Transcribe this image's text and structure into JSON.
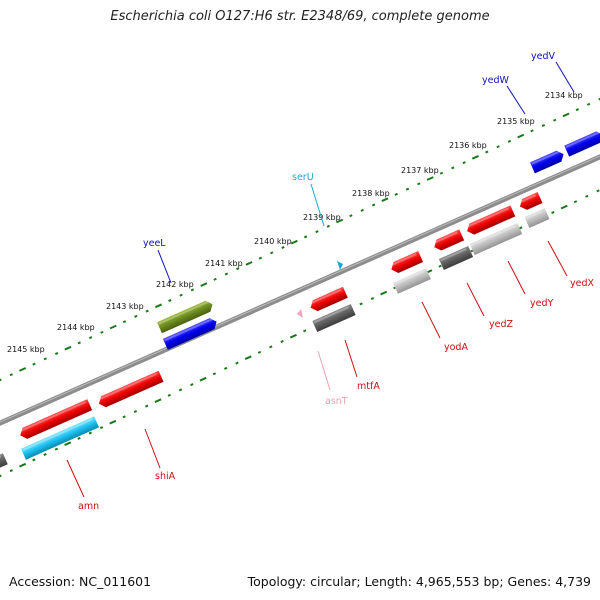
{
  "title": "Escherichia coli O127:H6 str. E2348/69, complete genome",
  "footer": {
    "accession": "Accession: NC_011601",
    "summary": "Topology: circular; Length: 4,965,553 bp; Genes: 4,739"
  },
  "colors": {
    "backbone": "#808080",
    "tick": "#1a7a1a",
    "label_forward_top": "#1010c0",
    "label_cyan": "#1aa8d0",
    "label_red": "#cc1010",
    "label_pink": "#f0a0b0"
  },
  "ticks": [
    {
      "label": "2134 kbp"
    },
    {
      "label": "2135 kbp"
    },
    {
      "label": "2136 kbp"
    },
    {
      "label": "2137 kbp"
    },
    {
      "label": "2138 kbp"
    },
    {
      "label": "2139 kbp"
    },
    {
      "label": "2140 kbp"
    },
    {
      "label": "2141 kbp"
    },
    {
      "label": "2142 kbp"
    },
    {
      "label": "2143 kbp"
    },
    {
      "label": "2144 kbp"
    },
    {
      "label": "2145 kbp"
    }
  ],
  "genes": [
    {
      "name": "yedV",
      "color": "#1010c0"
    },
    {
      "name": "yedW",
      "color": "#1010c0"
    },
    {
      "name": "serU",
      "color": "#1aa8d0"
    },
    {
      "name": "yeeL",
      "color": "#1010c0"
    },
    {
      "name": "yedX",
      "color": "#cc1010"
    },
    {
      "name": "yedY",
      "color": "#cc1010"
    },
    {
      "name": "yedZ",
      "color": "#cc1010"
    },
    {
      "name": "yodA",
      "color": "#cc1010"
    },
    {
      "name": "mtfA",
      "color": "#cc1010"
    },
    {
      "name": "asnT",
      "color": "#f0a0b0"
    },
    {
      "name": "shiA",
      "color": "#cc1010"
    },
    {
      "name": "amn",
      "color": "#cc1010"
    }
  ]
}
